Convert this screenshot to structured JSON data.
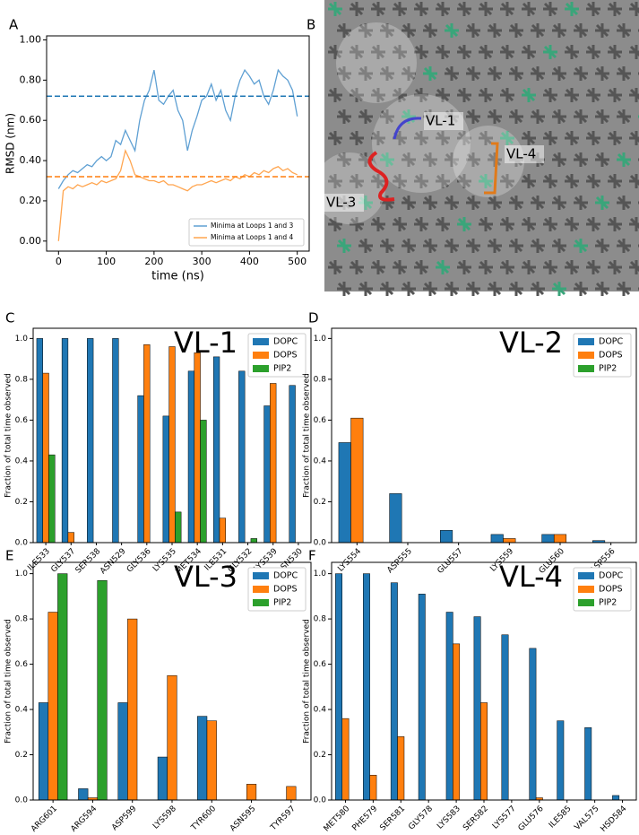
{
  "chart_data": [
    {
      "type": "line",
      "panel_label": "A",
      "xlabel": "time (ns)",
      "ylabel": "RMSD (nm)",
      "x": [
        0,
        10,
        20,
        30,
        40,
        50,
        60,
        70,
        80,
        90,
        100,
        110,
        120,
        130,
        140,
        150,
        160,
        170,
        180,
        190,
        200,
        210,
        220,
        230,
        240,
        250,
        260,
        270,
        280,
        290,
        300,
        310,
        320,
        330,
        340,
        350,
        360,
        370,
        380,
        390,
        400,
        410,
        420,
        430,
        440,
        450,
        460,
        470,
        480,
        490,
        500
      ],
      "series": [
        {
          "name": "Minima at Loops 1 and 3",
          "color": "#5fa0d3",
          "values": [
            0.26,
            0.3,
            0.33,
            0.35,
            0.34,
            0.36,
            0.38,
            0.37,
            0.4,
            0.42,
            0.4,
            0.42,
            0.5,
            0.48,
            0.55,
            0.5,
            0.45,
            0.6,
            0.7,
            0.75,
            0.85,
            0.7,
            0.68,
            0.72,
            0.75,
            0.65,
            0.6,
            0.45,
            0.55,
            0.62,
            0.7,
            0.72,
            0.78,
            0.7,
            0.75,
            0.65,
            0.6,
            0.72,
            0.8,
            0.85,
            0.82,
            0.78,
            0.8,
            0.72,
            0.68,
            0.75,
            0.85,
            0.82,
            0.8,
            0.75,
            0.62
          ]
        },
        {
          "name": "Minima at Loops 1 and 4",
          "color": "#ffa54f",
          "values": [
            0.0,
            0.25,
            0.27,
            0.26,
            0.28,
            0.27,
            0.28,
            0.29,
            0.28,
            0.3,
            0.29,
            0.3,
            0.31,
            0.35,
            0.45,
            0.4,
            0.33,
            0.32,
            0.31,
            0.3,
            0.3,
            0.29,
            0.3,
            0.28,
            0.28,
            0.27,
            0.26,
            0.25,
            0.27,
            0.28,
            0.28,
            0.29,
            0.3,
            0.29,
            0.3,
            0.31,
            0.3,
            0.32,
            0.31,
            0.33,
            0.32,
            0.34,
            0.33,
            0.35,
            0.34,
            0.36,
            0.37,
            0.35,
            0.36,
            0.34,
            0.33
          ]
        }
      ],
      "reference_lines": [
        {
          "value": 0.72,
          "color": "#1f77b4"
        },
        {
          "value": 0.32,
          "color": "#ff7f0e"
        }
      ],
      "xlim": [
        -25,
        525
      ],
      "xticks": [
        0,
        100,
        200,
        300,
        400,
        500
      ],
      "ylim": [
        -0.05,
        1.02
      ],
      "yticks": [
        {
          "value": 0,
          "label": "0.00"
        },
        {
          "value": 0.2,
          "label": "0.20"
        },
        {
          "value": 0.4,
          "label": "0.40"
        },
        {
          "value": 0.6,
          "label": "0.60"
        },
        {
          "value": 0.8,
          "label": "0.80"
        },
        {
          "value": 1.0,
          "label": "1.00"
        }
      ],
      "legend": "lower right"
    },
    {
      "type": "image",
      "panel_label": "B",
      "labels": [
        {
          "text": "VL-1",
          "color": "#3333cc"
        },
        {
          "text": "VL-4",
          "color": "#ff8c1a"
        },
        {
          "text": "VL-3",
          "color": "#ee2222"
        }
      ]
    },
    {
      "type": "bar",
      "panel_label": "C",
      "title": "VL-1",
      "title_color": "#1a1aee",
      "ylabel": "Fraction of total time observed",
      "categories": [
        "ILE533",
        "GLY537",
        "SER538",
        "ASN529",
        "GLY536",
        "LYS535",
        "MET534",
        "ILE531",
        "GLY532",
        "LYS539",
        "ASN530"
      ],
      "series": [
        {
          "name": "DOPC",
          "color": "#1f77b4",
          "values": [
            1.0,
            1.0,
            1.0,
            1.0,
            0.72,
            0.62,
            0.84,
            0.91,
            0.84,
            0.67,
            0.77
          ]
        },
        {
          "name": "DOPS",
          "color": "#ff7f0e",
          "values": [
            0.83,
            0.05,
            0,
            0,
            0.97,
            0.96,
            0.93,
            0.12,
            0,
            0.78,
            0
          ]
        },
        {
          "name": "PIP2",
          "color": "#2ca02c",
          "values": [
            0.43,
            0,
            0,
            0,
            0,
            0.15,
            0.6,
            0,
            0.02,
            0,
            0
          ]
        }
      ],
      "ylim": [
        0,
        1.05
      ],
      "yticks": [
        {
          "value": 0,
          "label": "0.0"
        },
        {
          "value": 0.2,
          "label": "0.2"
        },
        {
          "value": 0.4,
          "label": "0.4"
        },
        {
          "value": 0.6,
          "label": "0.6"
        },
        {
          "value": 0.8,
          "label": "0.8"
        },
        {
          "value": 1.0,
          "label": "1.0"
        }
      ],
      "legend": "upper right"
    },
    {
      "type": "bar",
      "panel_label": "D",
      "title": "VL-2",
      "title_color": "#555555",
      "ylabel": "Fraction of total time observed",
      "categories": [
        "LYS554",
        "ASP555",
        "GLU557",
        "LYS559",
        "GLU560",
        "ASP556"
      ],
      "series": [
        {
          "name": "DOPC",
          "color": "#1f77b4",
          "values": [
            0.49,
            0.24,
            0.06,
            0.04,
            0.04,
            0.01
          ]
        },
        {
          "name": "DOPS",
          "color": "#ff7f0e",
          "values": [
            0.61,
            0,
            0,
            0.02,
            0.04,
            0
          ]
        },
        {
          "name": "PIP2",
          "color": "#2ca02c",
          "values": [
            0,
            0,
            0,
            0,
            0,
            0
          ]
        }
      ],
      "ylim": [
        0,
        1.05
      ],
      "yticks": [
        {
          "value": 0,
          "label": "0.0"
        },
        {
          "value": 0.2,
          "label": "0.2"
        },
        {
          "value": 0.4,
          "label": "0.4"
        },
        {
          "value": 0.6,
          "label": "0.6"
        },
        {
          "value": 0.8,
          "label": "0.8"
        },
        {
          "value": 1.0,
          "label": "1.0"
        }
      ],
      "legend": "upper right"
    },
    {
      "type": "bar",
      "panel_label": "E",
      "title": "VL-3",
      "title_color": "#ee1111",
      "ylabel": "Fraction of total time observed",
      "categories": [
        "ARG601",
        "ARG594",
        "ASP599",
        "LYS598",
        "TYR600",
        "ASN595",
        "TYR597"
      ],
      "series": [
        {
          "name": "DOPC",
          "color": "#1f77b4",
          "values": [
            0.43,
            0.05,
            0.43,
            0.19,
            0.37,
            0,
            0
          ]
        },
        {
          "name": "DOPS",
          "color": "#ff7f0e",
          "values": [
            0.83,
            0.01,
            0.8,
            0.55,
            0.35,
            0.07,
            0.06
          ]
        },
        {
          "name": "PIP2",
          "color": "#2ca02c",
          "values": [
            1.0,
            0.97,
            0,
            0,
            0,
            0,
            0
          ]
        }
      ],
      "ylim": [
        0,
        1.05
      ],
      "yticks": [
        {
          "value": 0,
          "label": "0.0"
        },
        {
          "value": 0.2,
          "label": "0.2"
        },
        {
          "value": 0.4,
          "label": "0.4"
        },
        {
          "value": 0.6,
          "label": "0.6"
        },
        {
          "value": 0.8,
          "label": "0.8"
        },
        {
          "value": 1.0,
          "label": "1.0"
        }
      ],
      "legend": "upper right"
    },
    {
      "type": "bar",
      "panel_label": "F",
      "title": "VL-4",
      "title_color": "#ff8c1a",
      "ylabel": "Fraction of total time observed",
      "categories": [
        "MET580",
        "PHE579",
        "SER581",
        "GLY578",
        "LYS583",
        "SER582",
        "LYS577",
        "GLU576",
        "ILE585",
        "VAL575",
        "HSD584"
      ],
      "series": [
        {
          "name": "DOPC",
          "color": "#1f77b4",
          "values": [
            1.0,
            1.0,
            0.96,
            0.91,
            0.83,
            0.81,
            0.73,
            0.67,
            0.35,
            0.32,
            0.02
          ]
        },
        {
          "name": "DOPS",
          "color": "#ff7f0e",
          "values": [
            0.36,
            0.11,
            0.28,
            0,
            0.69,
            0.43,
            0,
            0.01,
            0,
            0,
            0
          ]
        },
        {
          "name": "PIP2",
          "color": "#2ca02c",
          "values": [
            0,
            0,
            0,
            0,
            0,
            0,
            0,
            0,
            0,
            0,
            0
          ]
        }
      ],
      "ylim": [
        0,
        1.05
      ],
      "yticks": [
        {
          "value": 0,
          "label": "0.0"
        },
        {
          "value": 0.2,
          "label": "0.2"
        },
        {
          "value": 0.4,
          "label": "0.4"
        },
        {
          "value": 0.6,
          "label": "0.6"
        },
        {
          "value": 0.8,
          "label": "0.8"
        },
        {
          "value": 1.0,
          "label": "1.0"
        }
      ],
      "legend": "upper right"
    }
  ]
}
